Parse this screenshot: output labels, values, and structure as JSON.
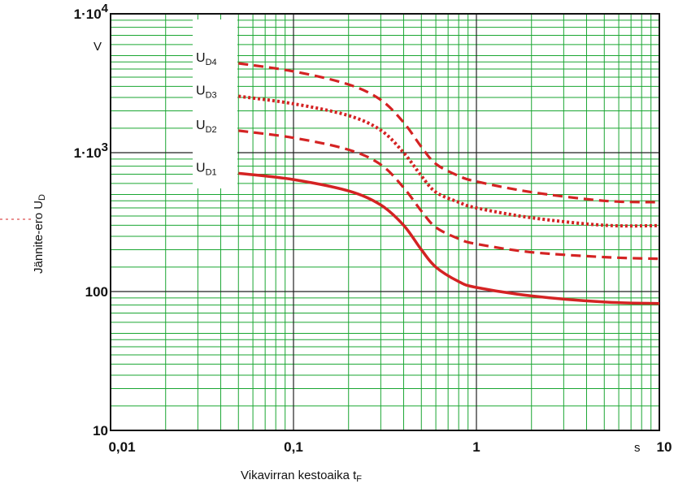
{
  "chart_data": {
    "type": "line",
    "xscale": "log",
    "yscale": "log",
    "xlim": [
      0.01,
      10
    ],
    "ylim": [
      10,
      10000
    ],
    "grid": true,
    "grid_color": "#1aa632",
    "series_color": "#d42323",
    "xlabel": {
      "main": "Vikavirran kestoaika t",
      "sub": "F"
    },
    "ylabel": {
      "main": "Jännite-ero U",
      "sub": "D"
    },
    "x_unit": "s",
    "y_unit": "V",
    "x_ticks": [
      {
        "value": 0.01,
        "label": "0,01"
      },
      {
        "value": 0.1,
        "label": "0,1"
      },
      {
        "value": 1,
        "label": "1"
      },
      {
        "value": 10,
        "label": "10"
      }
    ],
    "y_ticks": [
      {
        "value": 10,
        "label": "10",
        "exp": ""
      },
      {
        "value": 100,
        "label": "100",
        "exp": ""
      },
      {
        "value": 1000,
        "label": "1·10",
        "exp": "3"
      },
      {
        "value": 10000,
        "label": "1·10",
        "exp": "4"
      }
    ],
    "series": [
      {
        "name": "U",
        "sub": "D1",
        "style": "solid",
        "x": [
          0.05,
          0.1,
          0.2,
          0.3,
          0.4,
          0.5,
          0.6,
          0.8,
          1,
          2,
          5,
          10
        ],
        "y": [
          710,
          640,
          530,
          420,
          300,
          200,
          150,
          118,
          107,
          93,
          84,
          82
        ]
      },
      {
        "name": "U",
        "sub": "D2",
        "style": "dashed",
        "x": [
          0.05,
          0.1,
          0.2,
          0.3,
          0.4,
          0.5,
          0.6,
          0.8,
          1,
          2,
          5,
          10
        ],
        "y": [
          1440,
          1280,
          1050,
          820,
          560,
          380,
          290,
          240,
          220,
          192,
          177,
          172
        ]
      },
      {
        "name": "U",
        "sub": "D3",
        "style": "dotted",
        "x": [
          0.05,
          0.1,
          0.2,
          0.3,
          0.4,
          0.5,
          0.6,
          0.8,
          1,
          2,
          5,
          10
        ],
        "y": [
          2550,
          2250,
          1850,
          1450,
          1000,
          680,
          520,
          440,
          400,
          340,
          300,
          298
        ]
      },
      {
        "name": "U",
        "sub": "D4",
        "style": "dashed",
        "x": [
          0.05,
          0.1,
          0.2,
          0.3,
          0.4,
          0.5,
          0.6,
          0.8,
          1,
          2,
          5,
          10
        ],
        "y": [
          4400,
          3850,
          3100,
          2400,
          1650,
          1100,
          830,
          680,
          620,
          520,
          450,
          440
        ]
      }
    ]
  }
}
